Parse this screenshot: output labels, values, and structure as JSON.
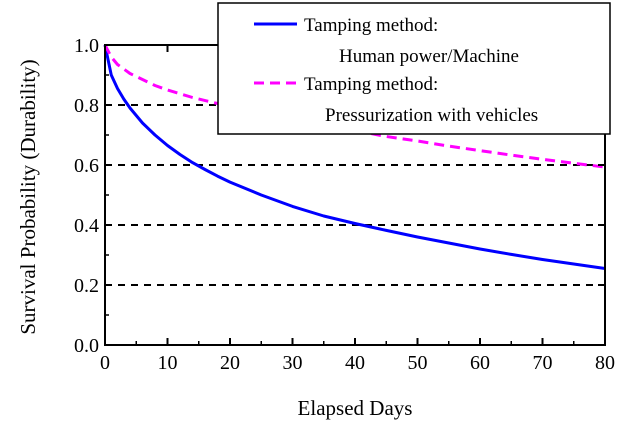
{
  "chart_data": {
    "type": "line",
    "xlabel": "Elapsed Days",
    "ylabel": "Survival Probability (Durability)",
    "xlim": [
      0,
      80
    ],
    "ylim": [
      0,
      1.0
    ],
    "x_ticks": [
      0,
      10,
      20,
      30,
      40,
      50,
      60,
      70,
      80
    ],
    "y_ticks": [
      0.0,
      0.2,
      0.4,
      0.6,
      0.8,
      1.0
    ],
    "x_tick_labels": [
      "0",
      "10",
      "20",
      "30",
      "40",
      "50",
      "60",
      "70",
      "80"
    ],
    "y_tick_labels": [
      "0.0",
      "0.2",
      "0.4",
      "0.6",
      "0.8",
      "1.0"
    ],
    "grid": "horizontal dashed",
    "legend_position": "top-right",
    "series": [
      {
        "name": "Tamping method: Human power/Machine",
        "legend_lines": [
          "Tamping method:",
          "Human power/Machine"
        ],
        "color": "#0000ff",
        "dash": "solid",
        "x": [
          0,
          1,
          2,
          3,
          4,
          5,
          6,
          8,
          10,
          12,
          14,
          16,
          18,
          20,
          25,
          30,
          35,
          40,
          45,
          50,
          55,
          60,
          65,
          70,
          75,
          80
        ],
        "y": [
          1.0,
          0.9,
          0.855,
          0.82,
          0.79,
          0.765,
          0.74,
          0.7,
          0.665,
          0.635,
          0.608,
          0.585,
          0.563,
          0.543,
          0.5,
          0.462,
          0.43,
          0.405,
          0.382,
          0.36,
          0.34,
          0.32,
          0.302,
          0.285,
          0.27,
          0.255
        ]
      },
      {
        "name": "Tamping method: Pressurization with vehicles",
        "legend_lines": [
          "Tamping method:",
          "Pressurization with vehicles"
        ],
        "color": "#ff00ff",
        "dash": "dashed",
        "x": [
          0,
          1,
          2,
          4,
          6,
          8,
          10,
          14,
          18,
          20,
          25,
          30,
          35,
          40,
          45,
          50,
          55,
          60,
          65,
          70,
          75,
          80
        ],
        "y": [
          1.0,
          0.96,
          0.935,
          0.905,
          0.885,
          0.865,
          0.85,
          0.825,
          0.805,
          0.795,
          0.775,
          0.755,
          0.735,
          0.715,
          0.695,
          0.68,
          0.663,
          0.648,
          0.633,
          0.619,
          0.606,
          0.593
        ]
      }
    ]
  }
}
